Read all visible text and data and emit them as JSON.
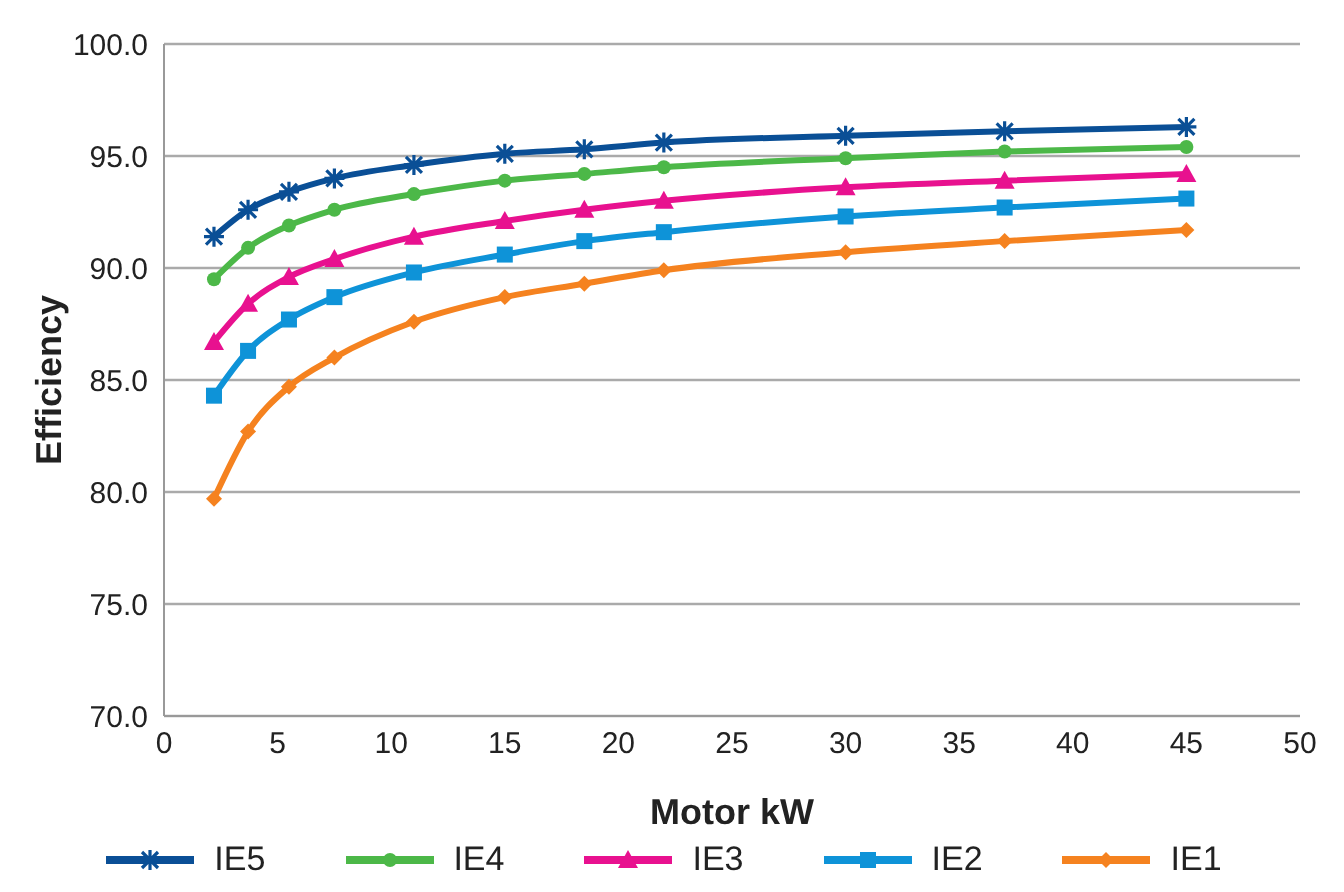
{
  "chart_data": {
    "type": "line",
    "xlabel": "Motor kW",
    "ylabel": "Efficiency",
    "x": [
      2.2,
      3.7,
      5.5,
      7.5,
      11,
      15,
      18.5,
      22,
      30,
      37,
      45
    ],
    "series": [
      {
        "name": "IE5",
        "color": "#0a4f96",
        "marker": "cross",
        "values": [
          91.4,
          92.6,
          93.4,
          94.0,
          94.6,
          95.1,
          95.3,
          95.6,
          95.9,
          96.1,
          96.3
        ]
      },
      {
        "name": "IE4",
        "color": "#4cb848",
        "marker": "circle",
        "values": [
          89.5,
          90.9,
          91.9,
          92.6,
          93.3,
          93.9,
          94.2,
          94.5,
          94.9,
          95.2,
          95.4
        ]
      },
      {
        "name": "IE3",
        "color": "#e8118f",
        "marker": "triangle",
        "values": [
          86.7,
          88.4,
          89.6,
          90.4,
          91.4,
          92.1,
          92.6,
          93.0,
          93.6,
          93.9,
          94.2
        ]
      },
      {
        "name": "IE2",
        "color": "#0e93d8",
        "marker": "square",
        "values": [
          84.3,
          86.3,
          87.7,
          88.7,
          89.8,
          90.6,
          91.2,
          91.6,
          92.3,
          92.7,
          93.1
        ]
      },
      {
        "name": "IE1",
        "color": "#f5821f",
        "marker": "diamond",
        "values": [
          79.7,
          82.7,
          84.7,
          86.0,
          87.6,
          88.7,
          89.3,
          89.9,
          90.7,
          91.2,
          91.7
        ]
      }
    ],
    "xlim": [
      0,
      50
    ],
    "xticks": [
      0,
      5,
      10,
      15,
      20,
      25,
      30,
      35,
      40,
      45,
      50
    ],
    "ylim": [
      70,
      100
    ],
    "yticks": [
      {
        "value": 70,
        "label": "70.0"
      },
      {
        "value": 75,
        "label": "75.0"
      },
      {
        "value": 80,
        "label": "80.0"
      },
      {
        "value": 85,
        "label": "85.0"
      },
      {
        "value": 90,
        "label": "90.0"
      },
      {
        "value": 95,
        "label": "95.0"
      },
      {
        "value": 100,
        "label": "100.0"
      }
    ],
    "grid": "y",
    "legend": "bottom",
    "line_style": "solid"
  }
}
